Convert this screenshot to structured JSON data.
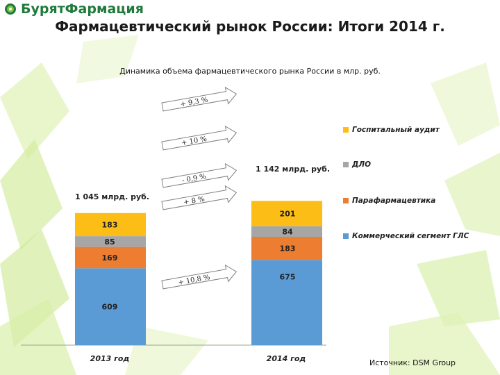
{
  "header": {
    "logo_text": "БурятФармация",
    "title": "Фармацевтический рынок России: Итоги 2014 г."
  },
  "source": "Источник: DSM Group",
  "colors": {
    "hospital": "#fcbe16",
    "dlo": "#a6a6a6",
    "parapharm": "#ed7d31",
    "commercial": "#5b9bd5",
    "logo_green": "#1f7a3c",
    "background_green": "#d9f0a3"
  },
  "chart_data": {
    "type": "bar",
    "stacked": true,
    "title": "Динамика объема фармацевтического рынка России в млр. руб.",
    "categories": [
      "2013 год",
      "2014 год"
    ],
    "totals": [
      "1 045  млрд. руб.",
      "1 142  млрд. руб."
    ],
    "series": [
      {
        "name": "Коммерческий сегмент ГЛС",
        "values": [
          609,
          675
        ],
        "labels": [
          "609",
          "675"
        ],
        "growth": "+ 10,8 %"
      },
      {
        "name": "Парафармацевтика",
        "values": [
          169,
          183
        ],
        "labels": [
          "169",
          "183"
        ],
        "growth": "+ 8 %"
      },
      {
        "name": "ДЛО",
        "values": [
          85,
          84
        ],
        "labels": [
          "85",
          "84"
        ],
        "growth": "- 0,9 %"
      },
      {
        "name": "Госпитальный аудит",
        "values": [
          183,
          201
        ],
        "labels": [
          "183",
          "201"
        ],
        "growth": "+ 10 %"
      }
    ],
    "total_growth": "+ 9,3 %",
    "legend_position": "right",
    "grid": false
  }
}
